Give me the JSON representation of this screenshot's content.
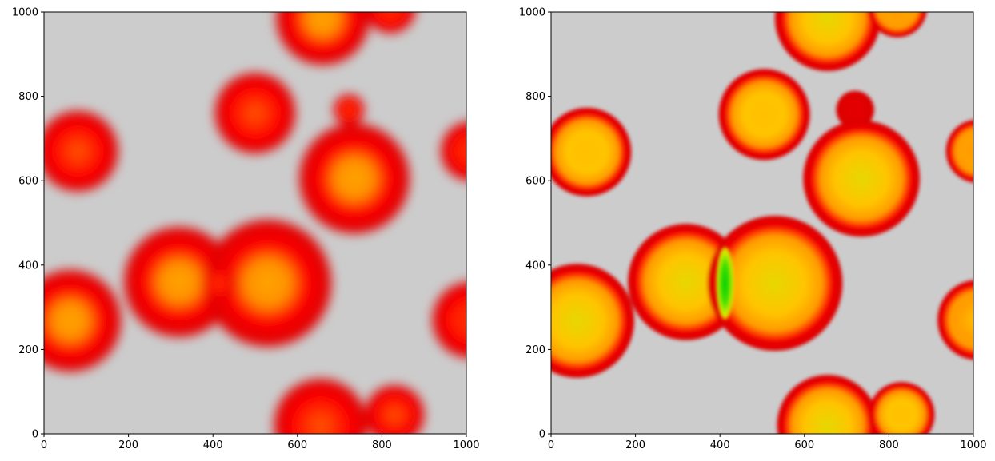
{
  "chart_data": [
    {
      "type": "heatmap",
      "title": "",
      "xlabel": "",
      "ylabel": "",
      "xlim": [
        0,
        1000
      ],
      "ylim": [
        0,
        1000
      ],
      "xticks": [
        0,
        200,
        400,
        600,
        800,
        1000
      ],
      "yticks": [
        0,
        200,
        400,
        600,
        800,
        1000
      ],
      "xtick_labels": [
        "0",
        "200",
        "400",
        "600",
        "800",
        "1000"
      ],
      "ytick_labels": [
        "0",
        "200",
        "400",
        "600",
        "800",
        "1000"
      ],
      "background_color": "#cccccc",
      "rendering": "blurred",
      "circles": [
        {
          "cx": 660,
          "cy": 985,
          "r": 110,
          "core": 0.55
        },
        {
          "cx": 820,
          "cy": 1010,
          "r": 60,
          "core": 0.0
        },
        {
          "cx": 500,
          "cy": 760,
          "r": 95,
          "core": 0.3
        },
        {
          "cx": 722,
          "cy": 768,
          "r": 36,
          "core": 0.0
        },
        {
          "cx": 80,
          "cy": 670,
          "r": 95,
          "core": 0.3
        },
        {
          "cx": 735,
          "cy": 605,
          "r": 130,
          "core": 0.6
        },
        {
          "cx": 1010,
          "cy": 670,
          "r": 70,
          "core": 0.0
        },
        {
          "cx": 320,
          "cy": 360,
          "r": 130,
          "core": 0.55
        },
        {
          "cx": 530,
          "cy": 357,
          "r": 150,
          "core": 0.65
        },
        {
          "cx": 415,
          "cy": 357,
          "r": 40,
          "core": 0.0
        },
        {
          "cx": 62,
          "cy": 268,
          "r": 120,
          "core": 0.55
        },
        {
          "cx": 1010,
          "cy": 270,
          "r": 90,
          "core": 0.0
        },
        {
          "cx": 655,
          "cy": 20,
          "r": 110,
          "core": 0.45
        },
        {
          "cx": 830,
          "cy": 45,
          "r": 70,
          "core": 0.3
        }
      ]
    },
    {
      "type": "heatmap",
      "title": "",
      "xlabel": "",
      "ylabel": "",
      "xlim": [
        0,
        1000
      ],
      "ylim": [
        0,
        1000
      ],
      "xticks": [
        0,
        200,
        400,
        600,
        800,
        1000
      ],
      "yticks": [
        0,
        200,
        400,
        600,
        800,
        1000
      ],
      "xtick_labels": [
        "0",
        "200",
        "400",
        "600",
        "800",
        "1000"
      ],
      "ytick_labels": [
        "0",
        "200",
        "400",
        "600",
        "800",
        "1000"
      ],
      "background_color": "#cccccc",
      "rendering": "sharp",
      "circles": [
        {
          "cx": 655,
          "cy": 985,
          "r": 125,
          "core": 0.75
        },
        {
          "cx": 820,
          "cy": 1010,
          "r": 70,
          "core": 0.3
        },
        {
          "cx": 505,
          "cy": 757,
          "r": 108,
          "core": 0.65
        },
        {
          "cx": 720,
          "cy": 768,
          "r": 45,
          "core": 0.0
        },
        {
          "cx": 85,
          "cy": 668,
          "r": 105,
          "core": 0.65
        },
        {
          "cx": 735,
          "cy": 605,
          "r": 138,
          "core": 0.85
        },
        {
          "cx": 1010,
          "cy": 670,
          "r": 75,
          "core": 0.3
        },
        {
          "cx": 320,
          "cy": 360,
          "r": 138,
          "core": 0.8
        },
        {
          "cx": 530,
          "cy": 357,
          "r": 160,
          "core": 0.9
        },
        {
          "cx": 62,
          "cy": 268,
          "r": 135,
          "core": 0.8
        },
        {
          "cx": 1010,
          "cy": 270,
          "r": 95,
          "core": 0.5
        },
        {
          "cx": 655,
          "cy": 20,
          "r": 120,
          "core": 0.75
        },
        {
          "cx": 830,
          "cy": 45,
          "r": 78,
          "core": 0.65
        }
      ],
      "highlight": {
        "cx": 412,
        "cy": 357,
        "rx": 38,
        "ry": 95
      }
    }
  ]
}
